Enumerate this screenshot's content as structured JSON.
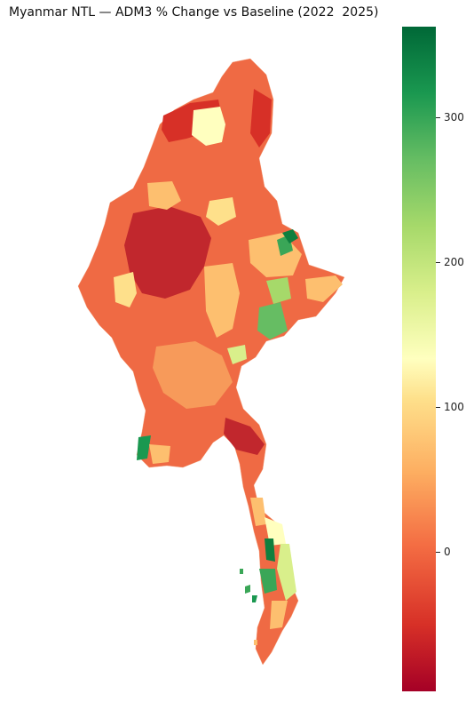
{
  "title": "Myanmar NTL — ADM3 % Change vs Baseline (2022  2025)",
  "colorbar": {
    "ticks": [
      "300",
      "200",
      "100",
      "0"
    ],
    "colors": [
      "#a50026",
      "#d73027",
      "#f46d43",
      "#fdae61",
      "#fee08b",
      "#ffffbf",
      "#d9ef8b",
      "#a6d96a",
      "#66bd63",
      "#1a9850",
      "#006837"
    ]
  },
  "map": {
    "country": "Myanmar",
    "fill_colors": {
      "deep_red": "#b2182b",
      "red": "#d73027",
      "orange_red": "#ef6a44",
      "orange": "#f79a5a",
      "light_orange": "#fdbf6f",
      "yellow": "#fee08b",
      "pale": "#ffffbf",
      "light_green": "#a6d96a",
      "green": "#3aa657",
      "dark_green": "#0f7f3e"
    }
  }
}
